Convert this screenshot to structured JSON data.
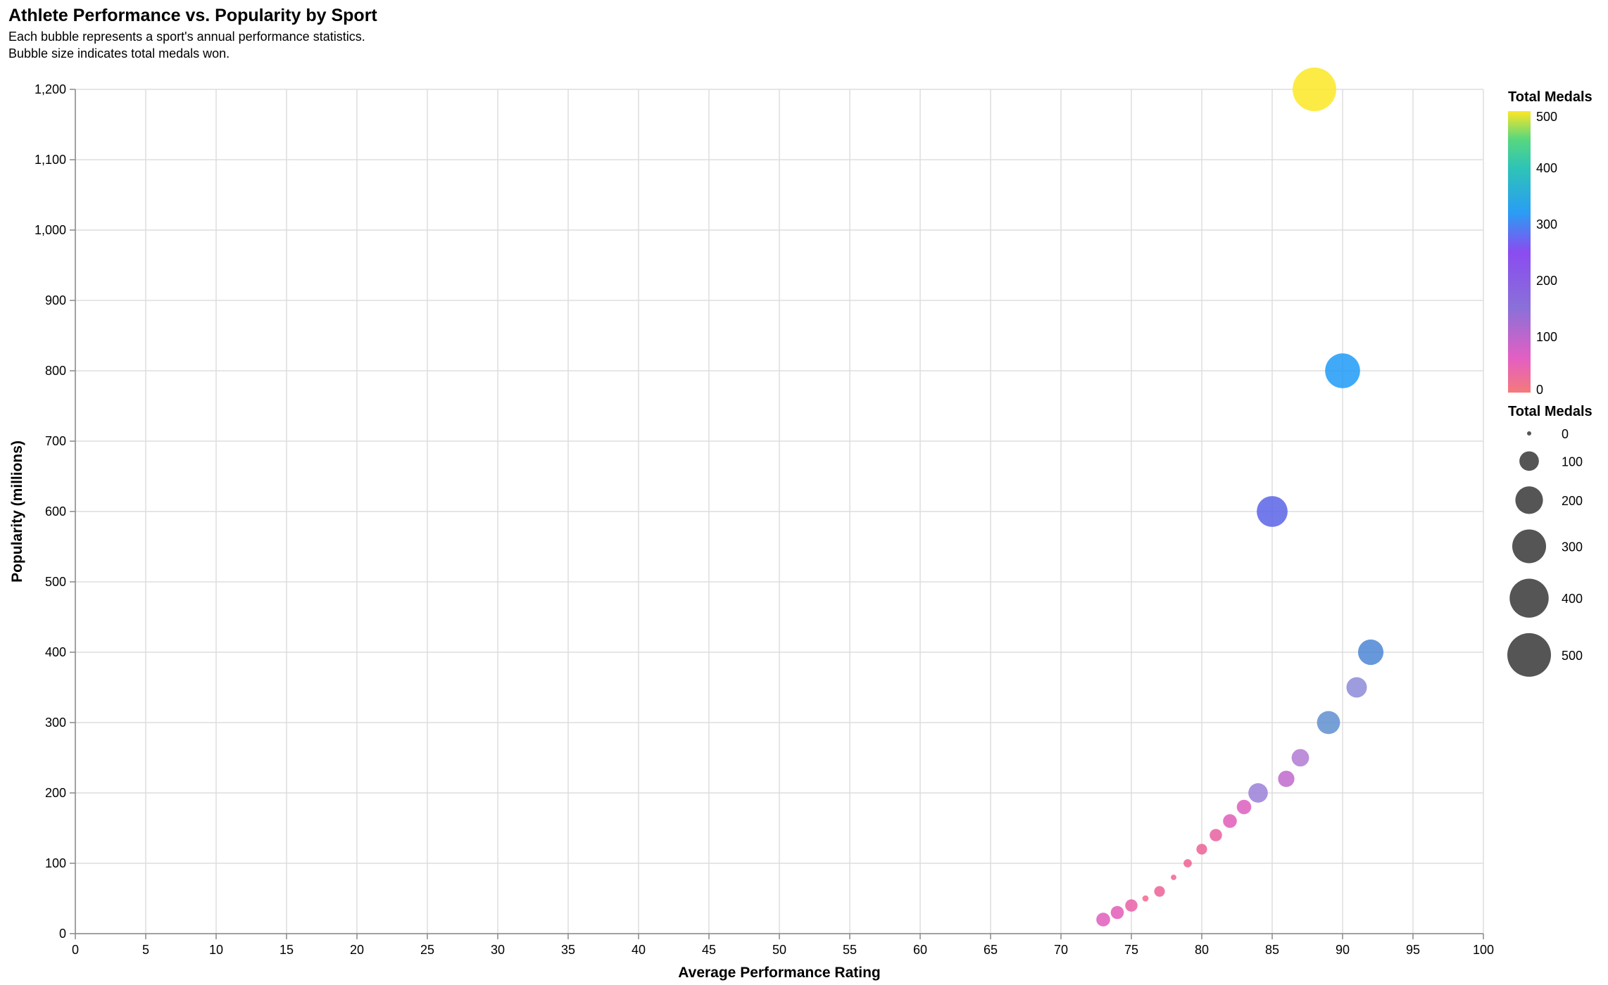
{
  "header": {
    "title": "Athlete Performance vs. Popularity by Sport",
    "subtitle_lines": [
      "Each bubble represents a sport's annual performance statistics.",
      "Bubble size indicates total medals won."
    ]
  },
  "chart_data": {
    "type": "scatter",
    "title": "Athlete Performance vs. Popularity by Sport",
    "xlabel": "Average Performance Rating",
    "ylabel": "Popularity (millions)",
    "xlim": [
      0,
      100
    ],
    "ylim": [
      0,
      1200
    ],
    "x_ticks": [
      0,
      5,
      10,
      15,
      20,
      25,
      30,
      35,
      40,
      45,
      50,
      55,
      60,
      65,
      70,
      75,
      80,
      85,
      90,
      95,
      100
    ],
    "y_ticks": [
      0,
      100,
      200,
      300,
      400,
      500,
      600,
      700,
      800,
      900,
      1000,
      1100,
      1200
    ],
    "grid": true,
    "size_field": "Total Medals",
    "color_field": "Total Medals",
    "legend_placement": "right",
    "color_legend": {
      "title": "Total Medals",
      "labels": [
        "500",
        "400",
        "300",
        "200",
        "100",
        "0"
      ],
      "scale": [
        {
          "value": 0,
          "color": "#f47a7a"
        },
        {
          "value": 60,
          "color": "#e45fc2"
        },
        {
          "value": 150,
          "color": "#8a70d8"
        },
        {
          "value": 250,
          "color": "#8a4cf0"
        },
        {
          "value": 320,
          "color": "#2a9df4"
        },
        {
          "value": 400,
          "color": "#2ec4b6"
        },
        {
          "value": 450,
          "color": "#58d77f"
        },
        {
          "value": 500,
          "color": "#fde725"
        }
      ]
    },
    "size_legend": {
      "title": "Total Medals",
      "labels": [
        "0",
        "100",
        "200",
        "300",
        "400",
        "500"
      ],
      "values": [
        0,
        100,
        200,
        300,
        400,
        500
      ]
    },
    "points": [
      {
        "x": 73,
        "y": 20,
        "medals": 50,
        "color": "#e05dbb"
      },
      {
        "x": 74,
        "y": 30,
        "medals": 45,
        "color": "#e35cb8"
      },
      {
        "x": 75,
        "y": 40,
        "medals": 40,
        "color": "#e860a8"
      },
      {
        "x": 76,
        "y": 50,
        "medals": 10,
        "color": "#f26890"
      },
      {
        "x": 77,
        "y": 60,
        "medals": 30,
        "color": "#ec6296"
      },
      {
        "x": 78,
        "y": 80,
        "medals": 8,
        "color": "#f2648e"
      },
      {
        "x": 79,
        "y": 100,
        "medals": 18,
        "color": "#f06292"
      },
      {
        "x": 80,
        "y": 120,
        "medals": 30,
        "color": "#ec6296"
      },
      {
        "x": 81,
        "y": 140,
        "medals": 40,
        "color": "#e8609e"
      },
      {
        "x": 82,
        "y": 160,
        "medals": 50,
        "color": "#e05db8"
      },
      {
        "x": 83,
        "y": 180,
        "medals": 55,
        "color": "#dc5ec0"
      },
      {
        "x": 84,
        "y": 200,
        "medals": 100,
        "color": "#9b80d8"
      },
      {
        "x": 85,
        "y": 600,
        "medals": 250,
        "color": "#5a64e8"
      },
      {
        "x": 86,
        "y": 220,
        "medals": 70,
        "color": "#c068cc"
      },
      {
        "x": 87,
        "y": 250,
        "medals": 80,
        "color": "#b27ad4"
      },
      {
        "x": 88,
        "y": 1200,
        "medals": 500,
        "color": "#fde725"
      },
      {
        "x": 89,
        "y": 300,
        "medals": 140,
        "color": "#5f8fd0"
      },
      {
        "x": 90,
        "y": 800,
        "medals": 320,
        "color": "#1e9bf7"
      },
      {
        "x": 91,
        "y": 350,
        "medals": 110,
        "color": "#8d8ad8"
      },
      {
        "x": 92,
        "y": 400,
        "medals": 170,
        "color": "#4d86d6"
      }
    ]
  }
}
